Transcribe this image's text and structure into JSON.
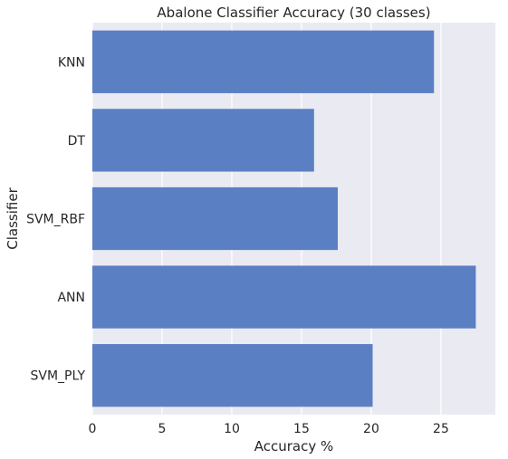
{
  "chart_data": {
    "type": "bar",
    "orientation": "horizontal",
    "title": "Abalone Classifier Accuracy (30 classes)",
    "xlabel": "Accuracy %",
    "ylabel": "Classifier",
    "categories": [
      "KNN",
      "DT",
      "SVM_RBF",
      "ANN",
      "SVM_PLY"
    ],
    "values": [
      24.5,
      15.9,
      17.6,
      27.5,
      20.1
    ],
    "xlim": [
      0,
      28.9
    ],
    "xticks": [
      0,
      5,
      10,
      15,
      20,
      25
    ],
    "grid": true,
    "colors": {
      "bar": "#5b7fc3",
      "background": "#eaeaf2",
      "grid": "#ffffff"
    }
  }
}
